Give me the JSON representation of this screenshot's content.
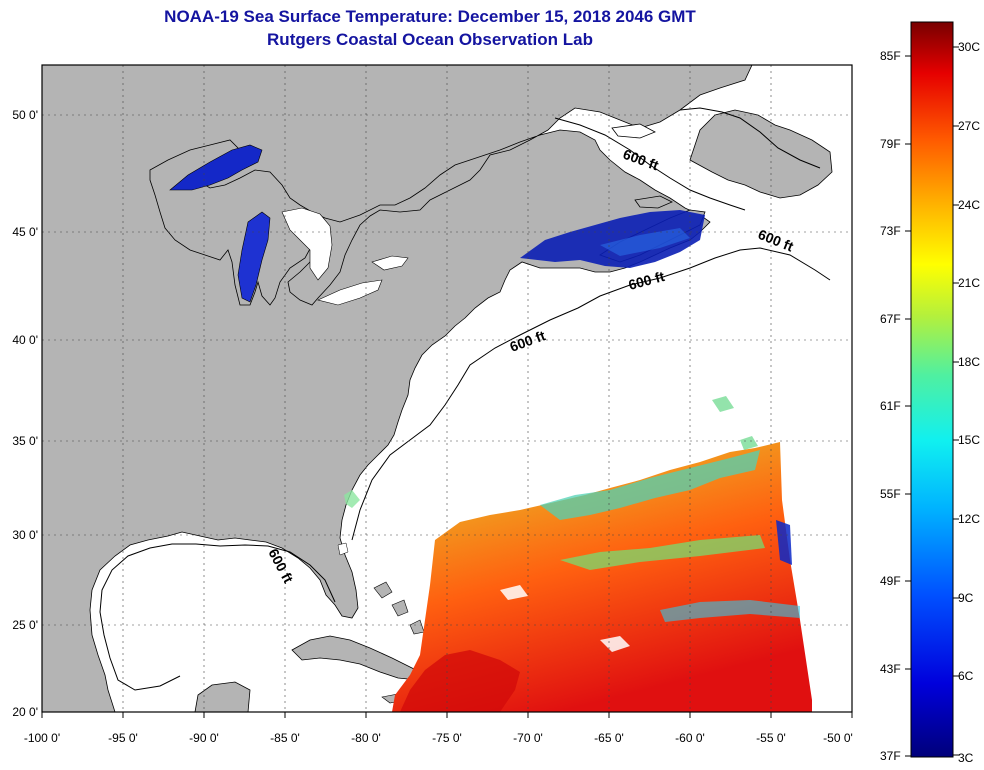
{
  "title": "NOAA-19 Sea Surface Temperature:  December 15, 2018 2046 GMT",
  "subtitle": "Rutgers Coastal Ocean Observation Lab",
  "lon_ticks": [
    "-100 0'",
    "-95 0'",
    "-90 0'",
    "-85 0'",
    "-80 0'",
    "-75 0'",
    "-70 0'",
    "-65 0'",
    "-60 0'",
    "-55 0'",
    "-50 0'"
  ],
  "lat_ticks": [
    "50 0'",
    "45 0'",
    "40 0'",
    "35 0'",
    "30 0'",
    "25 0'",
    "20 0'"
  ],
  "contour_labels": [
    "600 ft",
    "600 ft",
    "600 ft",
    "600 ft",
    "600 ft"
  ],
  "colorbar": {
    "fahrenheit": [
      "85F",
      "79F",
      "73F",
      "67F",
      "61F",
      "55F",
      "49F",
      "43F",
      "37F"
    ],
    "celsius": [
      "30C",
      "27C",
      "24C",
      "21C",
      "18C",
      "15C",
      "12C",
      "9C",
      "6C",
      "3C"
    ]
  },
  "colors": {
    "land": "#b4b4b4",
    "ocean": "#ffffff",
    "title": "#1414a0",
    "cold": "#0a1eb4"
  }
}
